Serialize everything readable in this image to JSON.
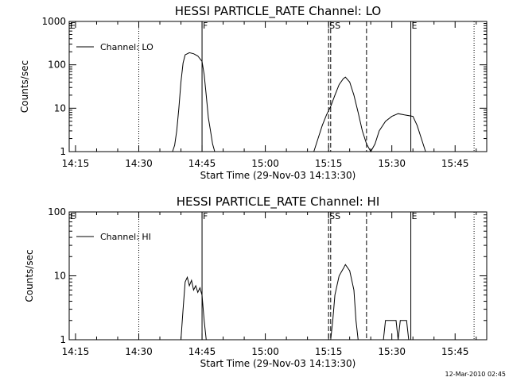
{
  "chart_data": [
    {
      "type": "line",
      "title": "HESSI PARTICLE_RATE Channel: LO",
      "xlabel": "Start Time (29-Nov-03 14:13:30)",
      "ylabel": "Counts/sec",
      "x_ticks": [
        "14:15",
        "14:30",
        "14:45",
        "15:00",
        "15:15",
        "15:30",
        "15:45"
      ],
      "y_ticks": [
        "1",
        "10",
        "100",
        "1000"
      ],
      "y_scale": "log",
      "ylim": [
        1,
        1000
      ],
      "xlim": [
        "14:13:30",
        "15:52:30"
      ],
      "grid": false,
      "legend_position": "top-left",
      "series": [
        {
          "name": "Channel: LO",
          "points": [
            [
              "14:38:00",
              1
            ],
            [
              "14:38:30",
              1.4
            ],
            [
              "14:39:00",
              3
            ],
            [
              "14:39:30",
              10
            ],
            [
              "14:40:00",
              40
            ],
            [
              "14:40:30",
              110
            ],
            [
              "14:41:00",
              170
            ],
            [
              "14:42:00",
              190
            ],
            [
              "14:43:00",
              180
            ],
            [
              "14:44:00",
              160
            ],
            [
              "14:45:00",
              120
            ],
            [
              "14:45:30",
              60
            ],
            [
              "14:46:00",
              20
            ],
            [
              "14:46:30",
              6
            ],
            [
              "14:47:00",
              3
            ],
            [
              "14:47:30",
              1.5
            ],
            [
              "14:48:00",
              1
            ],
            [
              "15:11:30",
              1
            ],
            [
              "15:12:30",
              2
            ],
            [
              "15:13:30",
              4
            ],
            [
              "15:14:30",
              7
            ],
            [
              "15:15:30",
              11
            ],
            [
              "15:16:30",
              20
            ],
            [
              "15:17:30",
              35
            ],
            [
              "15:18:30",
              48
            ],
            [
              "15:19:00",
              52
            ],
            [
              "15:20:00",
              40
            ],
            [
              "15:21:00",
              20
            ],
            [
              "15:22:00",
              8
            ],
            [
              "15:23:00",
              3
            ],
            [
              "15:24:00",
              1.5
            ],
            [
              "15:25:00",
              1
            ],
            [
              "15:26:00",
              1.5
            ],
            [
              "15:27:00",
              3
            ],
            [
              "15:28:30",
              5
            ],
            [
              "15:30:00",
              6.5
            ],
            [
              "15:31:30",
              7.5
            ],
            [
              "15:33:00",
              7
            ],
            [
              "15:35:00",
              6.5
            ],
            [
              "15:36:00",
              4
            ],
            [
              "15:37:00",
              2
            ],
            [
              "15:38:00",
              1
            ]
          ]
        }
      ],
      "markers": {
        "solid": [
          "14:45:00",
          "15:34:30"
        ],
        "dashed": [
          "15:15:00",
          "15:15:30",
          "15:24:00"
        ],
        "dotted": [
          "14:30:00",
          "15:49:30"
        ],
        "flags": [
          {
            "text": "E",
            "x": "14:13:30"
          },
          {
            "text": "F",
            "x": "14:45:00"
          },
          {
            "text": "SS",
            "x": "15:15:00"
          },
          {
            "text": "E",
            "x": "15:34:30"
          }
        ]
      }
    },
    {
      "type": "line",
      "title": "HESSI PARTICLE_RATE Channel: HI",
      "xlabel": "Start Time (29-Nov-03 14:13:30)",
      "ylabel": "Counts/sec",
      "x_ticks": [
        "14:15",
        "14:30",
        "14:45",
        "15:00",
        "15:15",
        "15:30",
        "15:45"
      ],
      "y_ticks": [
        "1",
        "10",
        "100"
      ],
      "y_scale": "log",
      "ylim": [
        1,
        100
      ],
      "xlim": [
        "14:13:30",
        "15:52:30"
      ],
      "grid": false,
      "legend_position": "top-left",
      "series": [
        {
          "name": "Channel: HI",
          "points": [
            [
              "14:40:00",
              1
            ],
            [
              "14:40:30",
              3
            ],
            [
              "14:41:00",
              8
            ],
            [
              "14:41:30",
              9.5
            ],
            [
              "14:42:00",
              7
            ],
            [
              "14:42:30",
              8.5
            ],
            [
              "14:43:00",
              6
            ],
            [
              "14:43:30",
              7
            ],
            [
              "14:44:00",
              5.5
            ],
            [
              "14:44:30",
              6.5
            ],
            [
              "14:45:00",
              5
            ],
            [
              "14:45:30",
              2
            ],
            [
              "14:46:00",
              1
            ],
            [
              "15:15:30",
              1
            ],
            [
              "15:16:00",
              2
            ],
            [
              "15:16:30",
              5
            ],
            [
              "15:17:30",
              10
            ],
            [
              "15:18:30",
              13
            ],
            [
              "15:19:00",
              15
            ],
            [
              "15:20:00",
              12
            ],
            [
              "15:21:00",
              6
            ],
            [
              "15:21:30",
              2
            ],
            [
              "15:22:00",
              1
            ],
            [
              "15:28:00",
              1
            ],
            [
              "15:28:30",
              2
            ],
            [
              "15:31:00",
              2
            ],
            [
              "15:31:30",
              1
            ],
            [
              "15:32:00",
              2
            ],
            [
              "15:33:30",
              2
            ],
            [
              "15:34:00",
              1
            ]
          ]
        }
      ],
      "markers": {
        "solid": [
          "14:45:00",
          "15:34:30"
        ],
        "dashed": [
          "15:15:00",
          "15:15:30",
          "15:24:00"
        ],
        "dotted": [
          "14:30:00",
          "15:49:30"
        ],
        "flags": [
          {
            "text": "E",
            "x": "14:13:30"
          },
          {
            "text": "F",
            "x": "14:45:00"
          },
          {
            "text": "SS",
            "x": "15:15:00"
          },
          {
            "text": "E",
            "x": "15:34:30"
          }
        ]
      }
    }
  ],
  "footer": {
    "timestamp": "12-Mar-2010 02:45"
  }
}
